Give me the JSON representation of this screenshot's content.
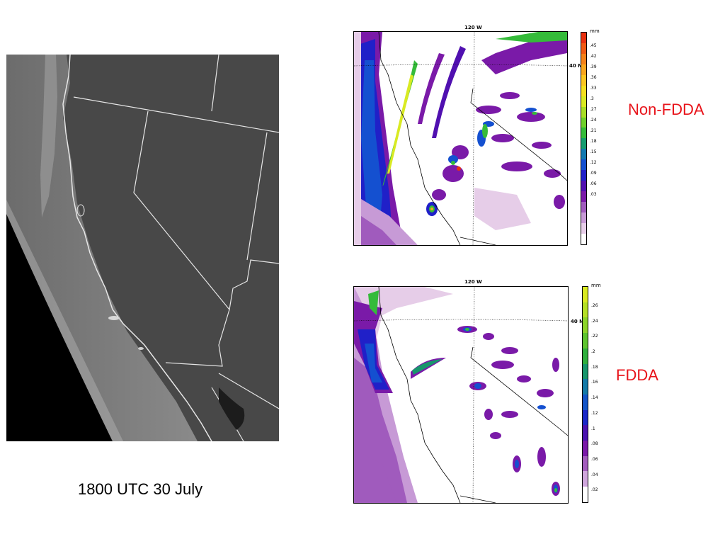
{
  "caption": "1800 UTC 30 July",
  "panels": [
    {
      "run_label": "Non-FDDA",
      "lon_label": "120 W",
      "lat_label": "40 N",
      "unit": "mm",
      "colorbar_ticks": [
        ".45",
        ".42",
        ".39",
        ".36",
        ".33",
        ".3",
        ".27",
        ".24",
        ".21",
        ".18",
        ".15",
        ".12",
        ".09",
        ".06",
        ".03"
      ],
      "colorbar_colors": [
        "#e8300f",
        "#f05a14",
        "#f5821a",
        "#f9a61f",
        "#fcc622",
        "#f5e01f",
        "#d9ea22",
        "#a8de25",
        "#6fd02b",
        "#35bb3a",
        "#159c6f",
        "#137ab0",
        "#1450d0",
        "#2020c8",
        "#5010b0",
        "#7a1aa8",
        "#a05bbd",
        "#c79ad6",
        "#e6cde8",
        "#ffffff"
      ],
      "label_color": "#e8141b"
    },
    {
      "run_label": "FDDA",
      "lon_label": "120 W",
      "lat_label": "40 N",
      "unit": "mm",
      "colorbar_ticks": [
        ".26",
        ".24",
        ".22",
        ".2",
        ".18",
        ".16",
        ".14",
        ".12",
        ".1",
        ".08",
        ".06",
        ".04",
        ".02"
      ],
      "colorbar_colors": [
        "#d9ea22",
        "#b5e026",
        "#8cd42a",
        "#5ec530",
        "#2fb03d",
        "#17966c",
        "#147aa8",
        "#1455c8",
        "#1a28c8",
        "#4a12b0",
        "#7a1aa8",
        "#a35dbd",
        "#cfa6dc",
        "#ffffff"
      ],
      "label_color": "#e8141b"
    }
  ]
}
